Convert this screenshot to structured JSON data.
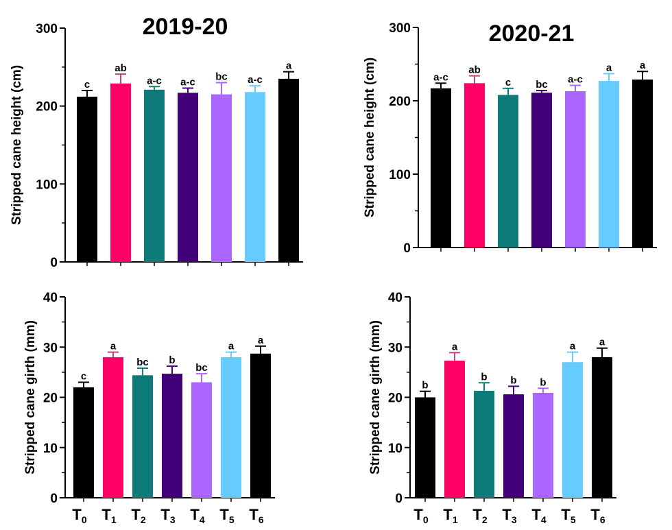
{
  "chart_data": [
    {
      "type": "bar",
      "title": "2019-20",
      "ylabel": "Stripped cane height (cm)",
      "ylim": [
        0,
        300
      ],
      "yticks": [
        "0",
        "100",
        "200",
        "300"
      ],
      "categories": [
        "T0",
        "T1",
        "T2",
        "T3",
        "T4",
        "T5",
        "T6"
      ],
      "values": [
        212,
        229,
        221,
        217,
        215,
        218,
        235
      ],
      "errors": [
        8,
        12,
        4,
        6,
        15,
        8,
        9
      ],
      "letters": [
        "c",
        "ab",
        "a-c",
        "a-c",
        "bc",
        "a-c",
        "a"
      ]
    },
    {
      "type": "bar",
      "title": "2020-21",
      "ylabel": "Stripped cane height (cm)",
      "ylim": [
        0,
        300
      ],
      "yticks": [
        "0",
        "100",
        "200",
        "300"
      ],
      "categories": [
        "T0",
        "T1",
        "T2",
        "T3",
        "T4",
        "T5",
        "T6"
      ],
      "values": [
        217,
        224,
        208,
        211,
        213,
        227,
        229
      ],
      "errors": [
        7,
        10,
        9,
        3,
        8,
        10,
        11
      ],
      "letters": [
        "a-c",
        "ab",
        "c",
        "bc",
        "a-c",
        "a",
        "a"
      ]
    },
    {
      "type": "bar",
      "title": "",
      "ylabel": "Stripped cane girth (mm)",
      "ylim": [
        0,
        40
      ],
      "yticks": [
        "0",
        "10",
        "20",
        "30",
        "40"
      ],
      "categories": [
        "T0",
        "T1",
        "T2",
        "T3",
        "T4",
        "T5",
        "T6"
      ],
      "values": [
        22.0,
        28.0,
        24.4,
        24.7,
        23.0,
        28.0,
        28.7
      ],
      "errors": [
        1.0,
        1.0,
        1.4,
        1.5,
        1.7,
        1.0,
        1.5
      ],
      "letters": [
        "c",
        "a",
        "bc",
        "b",
        "bc",
        "a",
        "a"
      ]
    },
    {
      "type": "bar",
      "title": "",
      "ylabel": "Stripped cane girth (mm)",
      "ylim": [
        0,
        40
      ],
      "yticks": [
        "0",
        "10",
        "20",
        "30",
        "40"
      ],
      "categories": [
        "T0",
        "T1",
        "T2",
        "T3",
        "T4",
        "T5",
        "T6"
      ],
      "values": [
        20.0,
        27.3,
        21.3,
        20.6,
        20.9,
        27.0,
        28.0
      ],
      "errors": [
        1.2,
        1.6,
        1.6,
        1.6,
        0.9,
        2.0,
        1.8
      ],
      "letters": [
        "b",
        "a",
        "b",
        "b",
        "b",
        "a",
        "a"
      ]
    }
  ],
  "x_labels": {
    "base": "T",
    "subs": [
      "0",
      "1",
      "2",
      "3",
      "4",
      "5",
      "6"
    ]
  },
  "colors": [
    "#000000",
    "#ff0066",
    "#0f7b78",
    "#420079",
    "#aa66ff",
    "#66ccff",
    "#000000"
  ],
  "error_colors": [
    "#000000",
    "#c0457a",
    "#0f7b78",
    "#420079",
    "#aa66ff",
    "#66ccff",
    "#000000"
  ]
}
